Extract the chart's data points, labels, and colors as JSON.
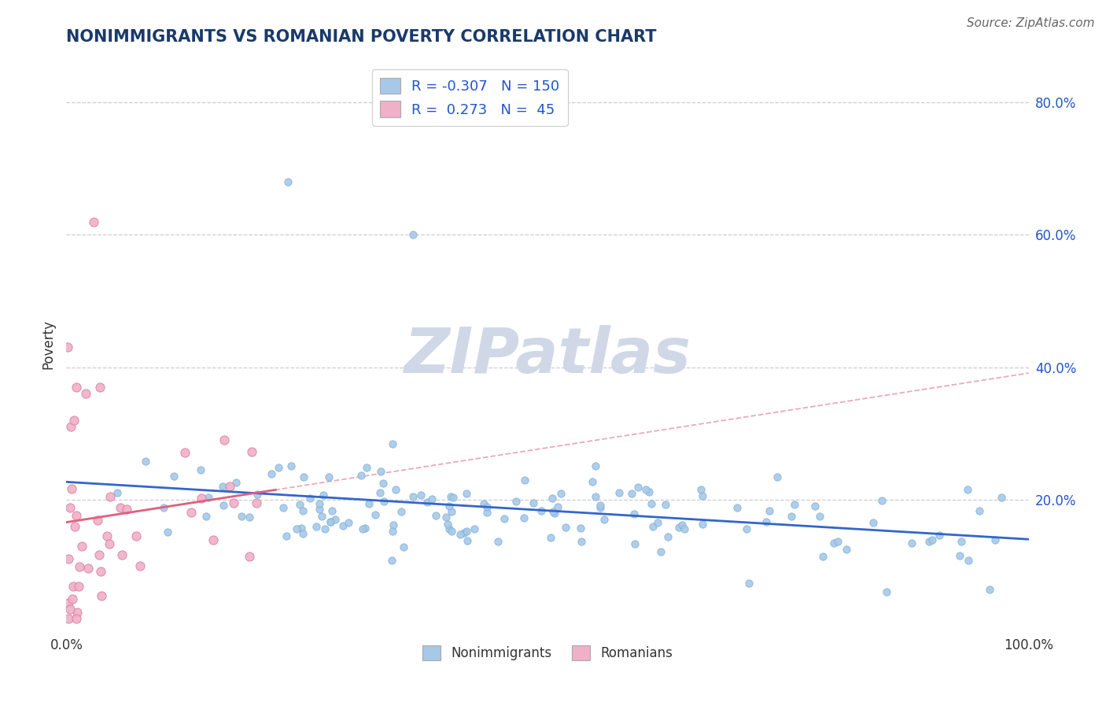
{
  "title": "NONIMMIGRANTS VS ROMANIAN POVERTY CORRELATION CHART",
  "source": "Source: ZipAtlas.com",
  "ylabel": "Poverty",
  "xlabel": "",
  "background_color": "#ffffff",
  "title_color": "#1a3a6b",
  "title_fontsize": 15,
  "source_fontsize": 11,
  "source_color": "#666666",
  "legend_R1": "-0.307",
  "legend_N1": "150",
  "legend_R2": "0.273",
  "legend_N2": "45",
  "legend_color": "#2255cc",
  "nonimmigrant_color": "#a8c8e8",
  "nonimmigrant_edge": "#7ab0d8",
  "romanian_color": "#f0b0c8",
  "romanian_edge": "#d880a0",
  "trend_nonimmigrant_color": "#3366cc",
  "trend_romanian_color_solid": "#e06080",
  "trend_romanian_color_dash": "#e8a0b8",
  "grid_color": "#c8c8c8",
  "legend_label1": "Nonimmigrants",
  "legend_label2": "Romanians",
  "watermark_text": "ZIPatlas",
  "watermark_color": "#d0d8e8",
  "nonimmigrant_marker_size": 45,
  "romanian_marker_size": 65
}
